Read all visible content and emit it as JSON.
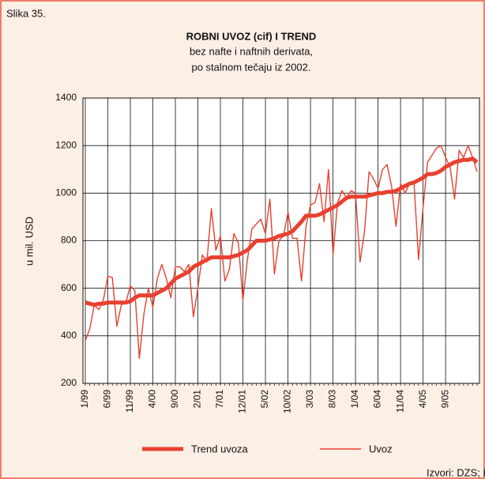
{
  "chart_data": {
    "type": "line",
    "figure_label": "Slika 35.",
    "title": "ROBNI UVOZ (cif) I TREND",
    "subtitle": [
      "bez nafte i naftnih derivata,",
      "po stalnom tečaju iz 2002."
    ],
    "y_label": "u mil. USD",
    "source": "Izvori: DZS; HNB",
    "categories": [
      "1/99",
      null,
      null,
      null,
      null,
      "6/99",
      null,
      null,
      null,
      null,
      "11/99",
      null,
      null,
      null,
      null,
      "4/00",
      null,
      null,
      null,
      null,
      "9/00",
      null,
      null,
      null,
      null,
      "2/01",
      null,
      null,
      null,
      null,
      "7/01",
      null,
      null,
      null,
      null,
      "12/01",
      null,
      null,
      null,
      null,
      "5/02",
      null,
      null,
      null,
      null,
      "10/02",
      null,
      null,
      null,
      null,
      "3/03",
      null,
      null,
      null,
      null,
      "8/03",
      null,
      null,
      null,
      null,
      "1/04",
      null,
      null,
      null,
      null,
      "6/04",
      null,
      null,
      null,
      null,
      "11/04",
      null,
      null,
      null,
      null,
      "4/05",
      null,
      null,
      null,
      null,
      "9/05",
      null,
      null,
      null,
      null,
      null,
      null,
      null
    ],
    "series": [
      {
        "name": "Trend uvoza",
        "color": "#e8412f",
        "width": 5,
        "values": [
          540,
          535,
          530,
          535,
          535,
          540,
          540,
          540,
          540,
          540,
          545,
          560,
          570,
          570,
          570,
          570,
          580,
          590,
          600,
          620,
          640,
          650,
          660,
          670,
          690,
          700,
          710,
          720,
          730,
          730,
          730,
          730,
          730,
          735,
          740,
          750,
          760,
          780,
          800,
          800,
          800,
          805,
          810,
          820,
          825,
          830,
          840,
          860,
          880,
          905,
          905,
          905,
          910,
          920,
          930,
          940,
          950,
          965,
          980,
          985,
          985,
          985,
          985,
          990,
          995,
          1000,
          1000,
          1005,
          1005,
          1010,
          1020,
          1030,
          1040,
          1045,
          1055,
          1065,
          1080,
          1080,
          1085,
          1095,
          1110,
          1120,
          1130,
          1135,
          1140,
          1140,
          1145,
          1130
        ]
      },
      {
        "name": "Uvoz",
        "color": "#e8412f",
        "width": 1.4,
        "values": [
          380,
          430,
          530,
          510,
          550,
          650,
          645,
          440,
          530,
          540,
          610,
          590,
          305,
          490,
          600,
          520,
          640,
          700,
          640,
          560,
          690,
          690,
          670,
          700,
          480,
          600,
          740,
          710,
          935,
          760,
          820,
          630,
          680,
          830,
          790,
          550,
          720,
          850,
          870,
          890,
          830,
          975,
          660,
          800,
          820,
          920,
          810,
          810,
          630,
          860,
          950,
          960,
          1040,
          880,
          1100,
          740,
          960,
          1010,
          980,
          1010,
          1000,
          710,
          840,
          1090,
          1060,
          1020,
          1100,
          1120,
          1030,
          860,
          1040,
          1000,
          1040,
          1040,
          720,
          940,
          1130,
          1160,
          1190,
          1200,
          1150,
          1110,
          975,
          1180,
          1150,
          1200,
          1150,
          1090
        ]
      }
    ],
    "ylim": [
      200,
      1400
    ],
    "yticks": [
      200,
      400,
      600,
      800,
      1000,
      1200,
      1400
    ],
    "grid": true
  }
}
